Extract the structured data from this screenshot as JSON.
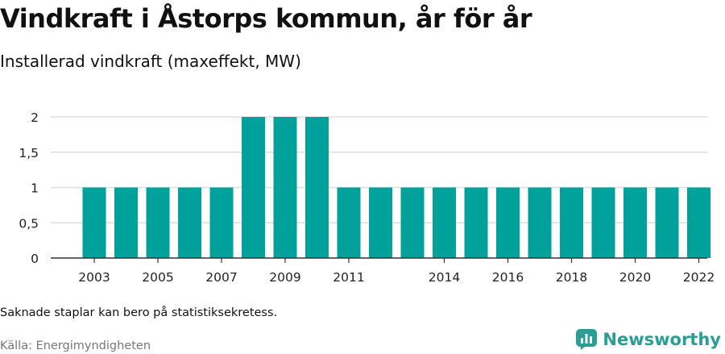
{
  "header": {
    "title": "Vindkraft i Åstorps kommun, år för år",
    "subtitle": "Installerad vindkraft (maxeffekt, MW)"
  },
  "footer": {
    "note": "Saknade staplar kan bero på statistiksekretess.",
    "source": "Källa: Energimyndigheten",
    "brand": "Newsworthy"
  },
  "colors": {
    "bar": "#00a19a",
    "grid": "#dddddd",
    "axis": "#333333",
    "brand": "#2a9d95"
  },
  "chart_data": {
    "type": "bar",
    "title": "Vindkraft i Åstorps kommun, år för år",
    "subtitle": "Installerad vindkraft (maxeffekt, MW)",
    "categories": [
      "2003",
      "2004",
      "2005",
      "2006",
      "2007",
      "2008",
      "2009",
      "2010",
      "2011",
      "2012",
      "2013",
      "2014",
      "2015",
      "2016",
      "2017",
      "2018",
      "2019",
      "2020",
      "2021",
      "2022"
    ],
    "values": [
      1,
      1,
      1,
      1,
      1,
      2,
      2,
      2,
      1,
      1,
      1,
      1,
      1,
      1,
      1,
      1,
      1,
      1,
      1,
      1
    ],
    "x_tick_labels": [
      "2003",
      "2005",
      "2007",
      "2009",
      "2011",
      "2014",
      "2016",
      "2018",
      "2020",
      "2022"
    ],
    "y_ticks": [
      {
        "value": 0,
        "label": "0"
      },
      {
        "value": 0.5,
        "label": "0,5"
      },
      {
        "value": 1,
        "label": "1"
      },
      {
        "value": 1.5,
        "label": "1,5"
      },
      {
        "value": 2,
        "label": "2"
      }
    ],
    "ylim": [
      0,
      2
    ],
    "xlabel": "",
    "ylabel": "",
    "grid": true
  }
}
